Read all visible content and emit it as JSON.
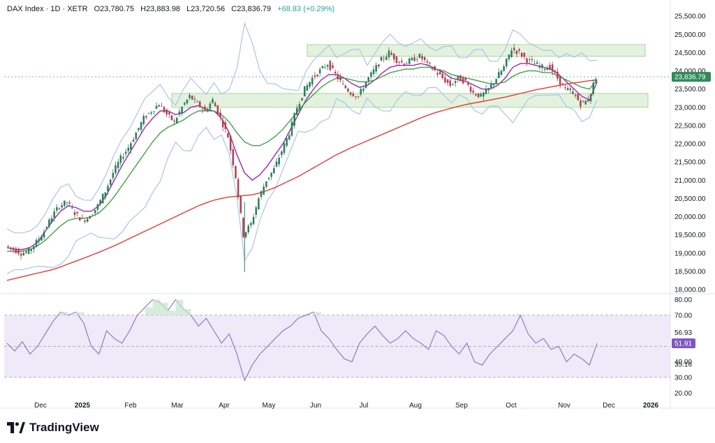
{
  "header": {
    "symbol": "DAX Index · 1D · XETR",
    "open": "O23,780.75",
    "high": "H23,883.98",
    "low": "L23,720.56",
    "close": "C23,836.79",
    "change": "+68.83 (+0.29%)"
  },
  "brand": {
    "name": "TradingView"
  },
  "colors": {
    "up": "#26a69a",
    "down": "#c2185b",
    "upCandle": "#2e7d5b",
    "downCandle": "#b0414f",
    "ma_fast": "#9c27b0",
    "ma_mid": "#43a047",
    "ma_slow": "#e53935",
    "bollinger": "#aac4ea",
    "zone": "#dcefd6",
    "rsi": "#8e7cc3",
    "rsi_band": "#efeaf8",
    "price_badge": "#2f8a5a",
    "rsi_badge": "#7e57c2"
  },
  "chart_data": [
    {
      "type": "candlestick",
      "title": "DAX Index · 1D · XETR",
      "ylim": [
        18000,
        25600
      ],
      "y_ticks": [
        "25,500.00",
        "25,000.00",
        "24,500.00",
        "24,000.00",
        "23,500.00",
        "23,000.00",
        "22,500.00",
        "22,000.00",
        "21,500.00",
        "21,000.00",
        "20,500.00",
        "20,000.00",
        "19,500.00",
        "19,000.00",
        "18,500.00",
        "18,000.00"
      ],
      "x_ticks": [
        "Dec",
        "2025",
        "Feb",
        "Mar",
        "Apr",
        "May",
        "Jun",
        "Jul",
        "Aug",
        "Sep",
        "Oct",
        "Nov",
        "Dec",
        "2026"
      ],
      "last_price": 23836.79,
      "last_price_label": "23,836.79",
      "zones": [
        {
          "from": 24400,
          "to": 24720,
          "x_start": "May-late",
          "x_end": "Dec"
        },
        {
          "from": 23000,
          "to": 23380,
          "x_start": "Feb-late",
          "x_end": "Dec"
        }
      ],
      "close_path": [
        19200,
        19100,
        19000,
        19050,
        19300,
        19600,
        20000,
        20300,
        20400,
        20100,
        19900,
        20000,
        20300,
        20700,
        21200,
        21600,
        21900,
        22300,
        22700,
        22900,
        23100,
        22800,
        22600,
        23000,
        23300,
        23100,
        22900,
        23200,
        22700,
        22200,
        21100,
        19500,
        19800,
        20500,
        21000,
        21300,
        21800,
        22300,
        23000,
        23500,
        23800,
        24000,
        24200,
        23900,
        23600,
        23400,
        23300,
        23700,
        24000,
        24300,
        24500,
        24300,
        24200,
        24300,
        24400,
        24200,
        24000,
        23800,
        23600,
        23800,
        23700,
        23400,
        23300,
        23500,
        23800,
        24100,
        24600,
        24500,
        24300,
        24200,
        24100,
        24100,
        23800,
        23500,
        23400,
        23100,
        23200,
        23836
      ],
      "series": [
        {
          "name": "",
          "values": [
            19150,
            19100,
            19100,
            19150,
            19300,
            19600,
            19900,
            20150,
            20300,
            20250,
            20150,
            20150,
            20300,
            20600,
            21000,
            21400,
            21750,
            22100,
            22450,
            22700,
            22900,
            22900,
            22800,
            22850,
            23000,
            23050,
            22950,
            22900,
            22700,
            22300,
            21700,
            21200,
            21000,
            21150,
            21400,
            21700,
            22000,
            22400,
            22800,
            23200,
            23500,
            23750,
            23900,
            23900,
            23800,
            23650,
            23550,
            23600,
            23750,
            23950,
            24100,
            24150,
            24150,
            24150,
            24200,
            24150,
            24050,
            23950,
            23800,
            23750,
            23700,
            23600,
            23500,
            23500,
            23600,
            23800,
            24100,
            24200,
            24200,
            24150,
            24100,
            24050,
            23900,
            23700,
            23500,
            23300,
            23200,
            23700
          ]
        },
        {
          "name": "",
          "values": [
            19050,
            19050,
            19050,
            19100,
            19200,
            19350,
            19550,
            19750,
            19900,
            19950,
            19950,
            20000,
            20100,
            20300,
            20550,
            20850,
            21150,
            21450,
            21750,
            22050,
            22300,
            22450,
            22550,
            22650,
            22800,
            22900,
            22900,
            22900,
            22800,
            22600,
            22300,
            22050,
            21950,
            21950,
            22050,
            22200,
            22400,
            22650,
            22900,
            23150,
            23350,
            23550,
            23700,
            23800,
            23800,
            23750,
            23700,
            23700,
            23750,
            23850,
            23950,
            24000,
            24050,
            24050,
            24100,
            24100,
            24050,
            24000,
            23900,
            23850,
            23800,
            23750,
            23700,
            23650,
            23650,
            23700,
            23850,
            23950,
            24000,
            24000,
            23950,
            23950,
            23850,
            23750,
            23650,
            23550,
            23500,
            23750
          ]
        },
        {
          "name": "",
          "values": [
            18250,
            18300,
            18350,
            18400,
            18450,
            18500,
            18550,
            18620,
            18700,
            18780,
            18860,
            18940,
            19020,
            19110,
            19200,
            19300,
            19400,
            19500,
            19600,
            19700,
            19800,
            19900,
            20000,
            20100,
            20200,
            20300,
            20380,
            20450,
            20500,
            20540,
            20560,
            20580,
            20600,
            20650,
            20720,
            20800,
            20900,
            21000,
            21100,
            21220,
            21340,
            21460,
            21580,
            21700,
            21800,
            21900,
            21990,
            22080,
            22170,
            22260,
            22350,
            22440,
            22530,
            22620,
            22710,
            22790,
            22860,
            22920,
            22980,
            23030,
            23080,
            23120,
            23160,
            23200,
            23240,
            23280,
            23330,
            23380,
            23430,
            23480,
            23520,
            23560,
            23600,
            23640,
            23670,
            23700,
            23730,
            23750
          ]
        }
      ]
    },
    {
      "type": "line",
      "title": "",
      "ylim": [
        17,
        82
      ],
      "y_ticks": [
        "80.00",
        "70.00",
        "40.00",
        "30.00",
        "20.00"
      ],
      "band": [
        30,
        70
      ],
      "mid_line": 50,
      "levels_labels": [
        "56.93",
        "35.16"
      ],
      "last_value": 51.91,
      "last_value_label": "51.91",
      "values": [
        52,
        47,
        53,
        45,
        50,
        58,
        66,
        72,
        70,
        72,
        65,
        50,
        45,
        60,
        55,
        52,
        60,
        70,
        75,
        80,
        78,
        73,
        80,
        74,
        70,
        63,
        68,
        60,
        52,
        58,
        45,
        28,
        38,
        45,
        50,
        55,
        60,
        63,
        68,
        70,
        72,
        60,
        55,
        48,
        42,
        40,
        52,
        58,
        63,
        57,
        52,
        55,
        60,
        55,
        52,
        48,
        60,
        57,
        50,
        45,
        52,
        40,
        38,
        45,
        50,
        55,
        60,
        70,
        58,
        52,
        55,
        48,
        50,
        40,
        45,
        42,
        38,
        51.91
      ]
    }
  ]
}
